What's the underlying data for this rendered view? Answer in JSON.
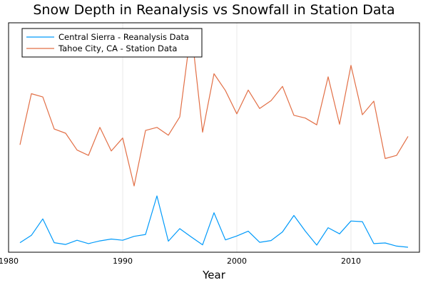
{
  "chart_data": {
    "type": "line",
    "title": "Snow Depth in Reanalysis vs Snowfall in Station Data",
    "xlabel": "Year",
    "ylabel": "",
    "xlim": [
      1980,
      2016
    ],
    "ylim": [
      0,
      100
    ],
    "x_ticks": [
      1980,
      1990,
      2000,
      2010
    ],
    "y_ticks_shown": false,
    "grid": true,
    "legend_position": "top-left",
    "series": [
      {
        "name": "Central Sierra - Reanalysis Data",
        "color": "#009AFA",
        "x": [
          1981,
          1982,
          1983,
          1984,
          1985,
          1986,
          1987,
          1988,
          1989,
          1990,
          1991,
          1992,
          1993,
          1994,
          1995,
          1996,
          1997,
          1998,
          1999,
          2000,
          2001,
          2002,
          2003,
          2004,
          2005,
          2006,
          2007,
          2008,
          2009,
          2010,
          2011,
          2012,
          2013,
          2014,
          2015
        ],
        "y": [
          4.3,
          11.2,
          26.7,
          4.3,
          2.6,
          6.6,
          3.4,
          6.0,
          7.7,
          6.6,
          10.3,
          12.0,
          48.3,
          5.7,
          17.5,
          9.7,
          2.3,
          32.5,
          6.9,
          10.6,
          15.2,
          4.6,
          6.3,
          14.4,
          29.9,
          15.2,
          2.0,
          18.4,
          12.6,
          24.7,
          24.1,
          3.4,
          4.0,
          1.1,
          0.0
        ]
      },
      {
        "name": "Tahoe City, CA - Station Data",
        "color": "#E26F46",
        "x": [
          1981,
          1982,
          1983,
          1984,
          1985,
          1986,
          1987,
          1988,
          1989,
          1990,
          1991,
          1992,
          1993,
          1994,
          1995,
          1996,
          1997,
          1998,
          1999,
          2000,
          2001,
          2002,
          2003,
          2004,
          2005,
          2006,
          2007,
          2008,
          2009,
          2010,
          2011,
          2012,
          2013,
          2014,
          2015
        ],
        "y": [
          36.5,
          64.4,
          62.6,
          45.1,
          42.8,
          33.6,
          30.7,
          46.0,
          33.1,
          40.2,
          14.0,
          44.3,
          46.0,
          41.7,
          51.7,
          100.0,
          43.4,
          75.3,
          66.1,
          53.4,
          66.4,
          56.3,
          60.6,
          68.4,
          52.6,
          51.1,
          47.4,
          73.6,
          47.7,
          79.9,
          52.9,
          60.3,
          29.0,
          30.7,
          41.1
        ]
      }
    ]
  }
}
